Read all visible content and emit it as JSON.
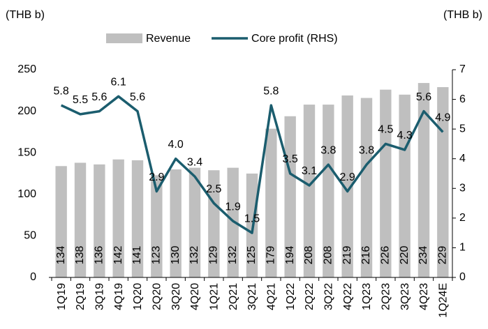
{
  "chart_data": {
    "type": "bar",
    "y_label": "(THB b)",
    "y2_label": "(THB b)",
    "categories": [
      "1Q19",
      "2Q19",
      "3Q19",
      "4Q19",
      "1Q20",
      "2Q20",
      "3Q20",
      "4Q20",
      "1Q21",
      "2Q21",
      "3Q21",
      "4Q21",
      "1Q22",
      "2Q22",
      "3Q22",
      "4Q22",
      "1Q23",
      "2Q23",
      "3Q23",
      "4Q23",
      "1Q24E"
    ],
    "series": [
      {
        "name": "Revenue",
        "type": "bar",
        "color": "#bfbfbf",
        "values": [
          134,
          138,
          136,
          142,
          141,
          123,
          130,
          132,
          129,
          132,
          125,
          179,
          194,
          208,
          208,
          219,
          216,
          226,
          220,
          234,
          229
        ]
      },
      {
        "name": "Core profit (RHS)",
        "type": "line",
        "axis": "y2",
        "color": "#1b5d6e",
        "values": [
          5.8,
          5.5,
          5.6,
          6.1,
          5.6,
          2.9,
          4.0,
          3.4,
          2.5,
          1.9,
          1.5,
          5.8,
          3.5,
          3.1,
          3.8,
          2.9,
          3.8,
          4.5,
          4.3,
          5.6,
          4.9
        ],
        "value_labels": [
          "5.8",
          "5.5",
          "5.6",
          "6.1",
          "5.6",
          "2.9",
          "4.0",
          "3.4",
          "2.5",
          "1.9",
          "1.5",
          "5.8",
          "3.5",
          "3.1",
          "3.8",
          "2.9",
          "3.8",
          "4.5",
          "4.3",
          "5.6",
          "4.9"
        ]
      }
    ],
    "ylim": [
      0,
      250
    ],
    "yticks": [
      0,
      50,
      100,
      150,
      200,
      250
    ],
    "y2lim": [
      0,
      7
    ],
    "y2ticks": [
      0,
      1,
      2,
      3,
      4,
      5,
      6,
      7
    ],
    "legend": "top"
  }
}
